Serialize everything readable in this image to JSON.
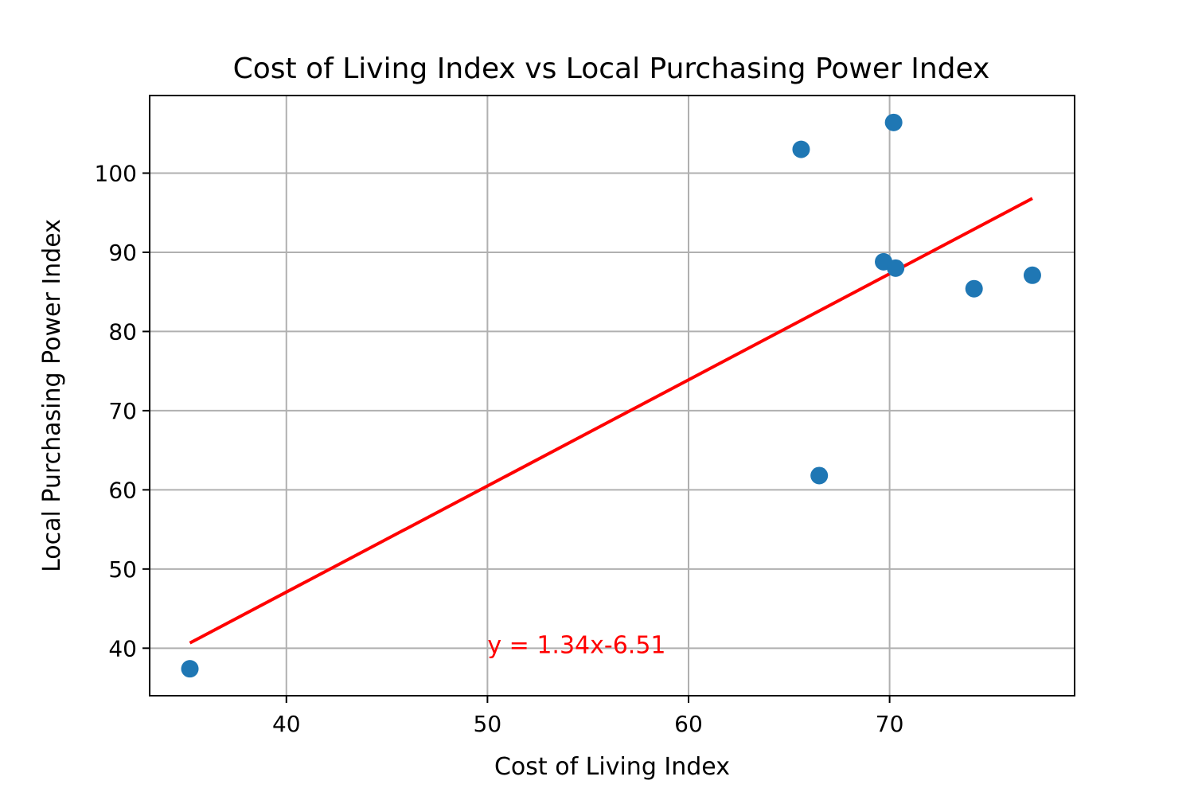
{
  "chart_data": {
    "type": "scatter",
    "title": "Cost of Living Index vs Local Purchasing Power Index",
    "xlabel": "Cost of Living Index",
    "ylabel": "Local Purchasing Power Index",
    "xlim": [
      33.2,
      79.2
    ],
    "ylim": [
      34,
      109.8
    ],
    "xticks": [
      40,
      50,
      60,
      70
    ],
    "yticks": [
      40,
      50,
      60,
      70,
      80,
      90,
      100
    ],
    "grid": true,
    "series": [
      {
        "color": "#1f77b4",
        "points": [
          {
            "x": 35.2,
            "y": 37.4
          },
          {
            "x": 65.6,
            "y": 103.0
          },
          {
            "x": 70.2,
            "y": 106.4
          },
          {
            "x": 69.7,
            "y": 88.8
          },
          {
            "x": 70.3,
            "y": 88.0
          },
          {
            "x": 74.2,
            "y": 85.4
          },
          {
            "x": 77.1,
            "y": 87.1
          },
          {
            "x": 66.5,
            "y": 61.8
          }
        ]
      }
    ],
    "trendline": {
      "color": "#ff0000",
      "slope": 1.34,
      "intercept": -6.51,
      "x_range": [
        35.2,
        77.1
      ]
    },
    "annotation": {
      "text": "y = 1.34x-6.51",
      "x": 50,
      "y": 40.4,
      "color": "#ff0000"
    }
  }
}
